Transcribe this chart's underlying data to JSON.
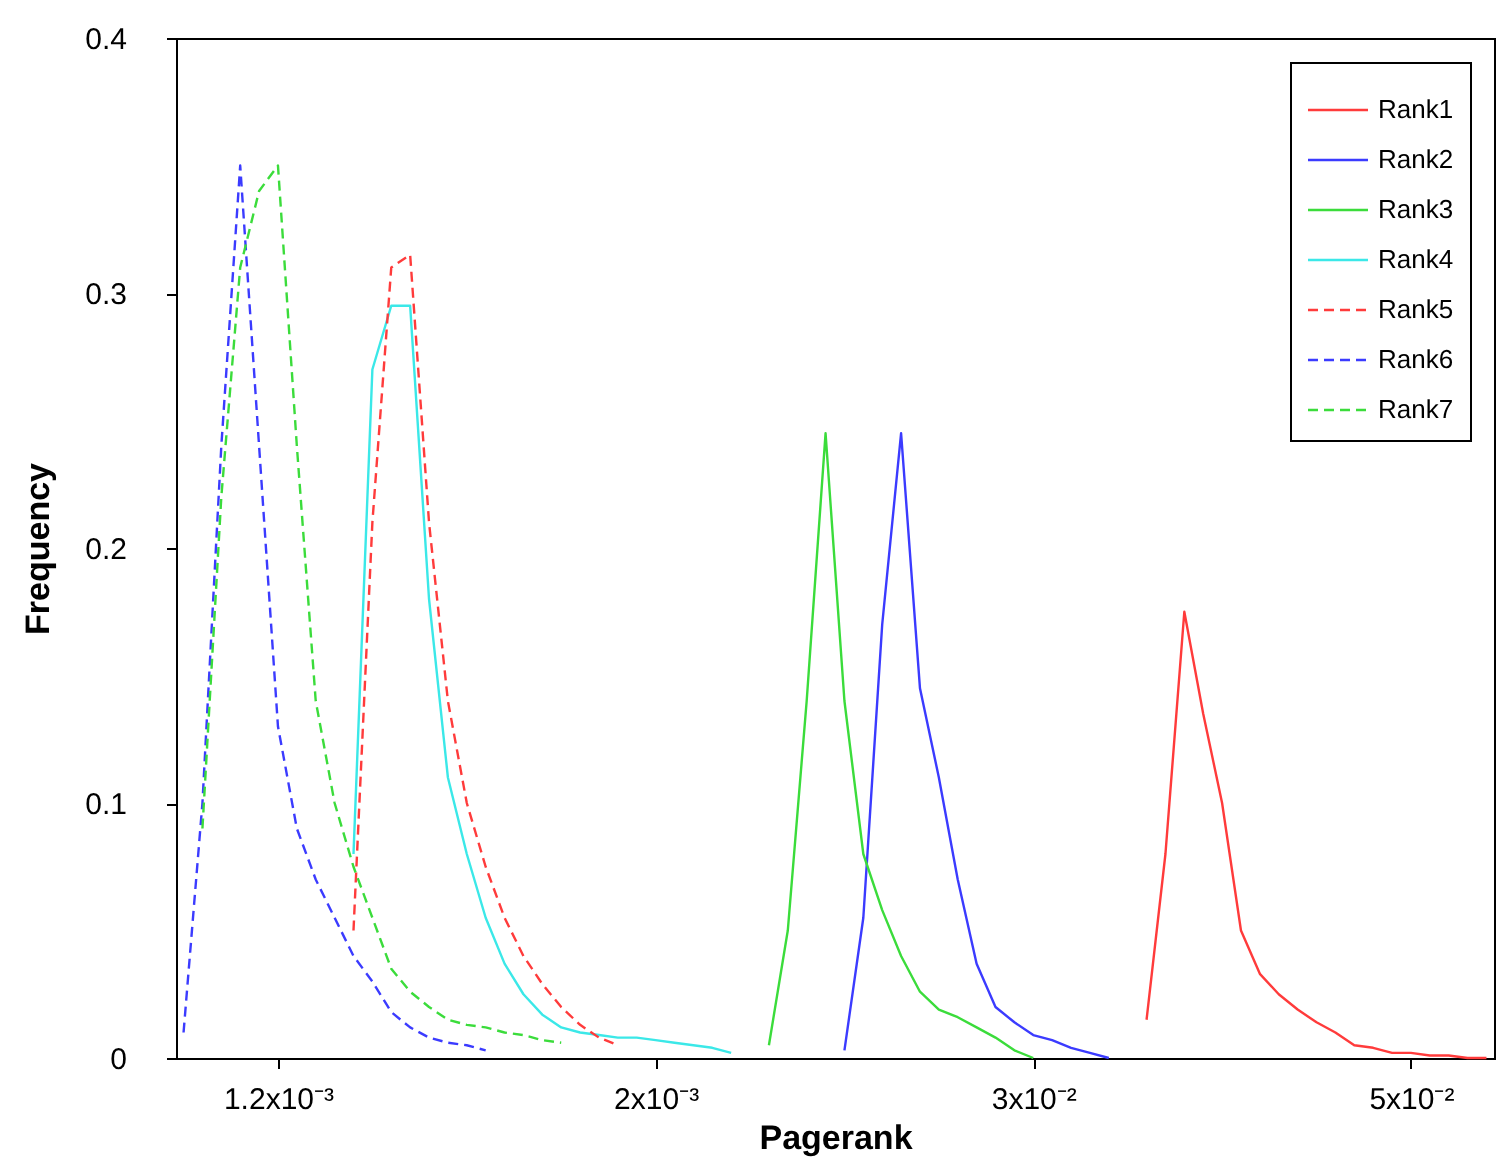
{
  "chart_data": {
    "type": "line",
    "xlabel": "Pagerank",
    "ylabel": "Frequency",
    "categories": [
      null,
      null,
      null,
      null,
      null,
      "1.2x10⁻³",
      null,
      null,
      null,
      null,
      null,
      null,
      null,
      null,
      null,
      null,
      null,
      null,
      null,
      null,
      null,
      null,
      null,
      null,
      null,
      "2x10⁻³",
      null,
      null,
      null,
      null,
      null,
      null,
      null,
      null,
      null,
      null,
      null,
      null,
      null,
      null,
      null,
      null,
      null,
      null,
      null,
      "3x10⁻²",
      null,
      null,
      null,
      null,
      null,
      null,
      null,
      null,
      null,
      null,
      null,
      null,
      null,
      null,
      null,
      null,
      null,
      null,
      null,
      "5x10⁻²",
      null,
      null,
      null,
      null
    ],
    "ylim": [
      0,
      0.4
    ],
    "yticks": [
      0,
      0.1,
      0.2,
      0.3,
      0.4
    ],
    "legend": "top right",
    "series": [
      {
        "name": "Rank1",
        "color": "#ff3b3b",
        "line_style": "solid",
        "values": [
          null,
          null,
          null,
          null,
          null,
          null,
          null,
          null,
          null,
          null,
          null,
          null,
          null,
          null,
          null,
          null,
          null,
          null,
          null,
          null,
          null,
          null,
          null,
          null,
          null,
          null,
          null,
          null,
          null,
          null,
          null,
          null,
          null,
          null,
          null,
          null,
          null,
          null,
          null,
          null,
          null,
          null,
          null,
          null,
          null,
          null,
          null,
          null,
          null,
          null,
          null,
          0.015,
          0.08,
          0.175,
          0.135,
          0.1,
          0.05,
          0.033,
          0.025,
          0.019,
          0.014,
          0.01,
          0.005,
          0.004,
          0.002,
          0.002,
          0.001,
          0.001,
          0,
          0
        ]
      },
      {
        "name": "Rank2",
        "color": "#3b3bff",
        "line_style": "solid",
        "values": [
          null,
          null,
          null,
          null,
          null,
          null,
          null,
          null,
          null,
          null,
          null,
          null,
          null,
          null,
          null,
          null,
          null,
          null,
          null,
          null,
          null,
          null,
          null,
          null,
          null,
          null,
          null,
          null,
          null,
          null,
          null,
          null,
          null,
          null,
          null,
          0.003,
          0.055,
          0.17,
          0.245,
          0.145,
          0.11,
          0.07,
          0.037,
          0.02,
          0.014,
          0.009,
          0.007,
          0.004,
          0.002,
          0,
          null,
          null,
          null,
          null,
          null,
          null,
          null,
          null,
          null,
          null,
          null,
          null,
          null,
          null,
          null,
          null,
          null,
          null,
          null,
          null
        ]
      },
      {
        "name": "Rank3",
        "color": "#3bdc3b",
        "line_style": "solid",
        "values": [
          null,
          null,
          null,
          null,
          null,
          null,
          null,
          null,
          null,
          null,
          null,
          null,
          null,
          null,
          null,
          null,
          null,
          null,
          null,
          null,
          null,
          null,
          null,
          null,
          null,
          null,
          null,
          null,
          null,
          null,
          null,
          0.005,
          0.05,
          0.14,
          0.245,
          0.14,
          0.08,
          0.058,
          0.04,
          0.026,
          0.019,
          0.016,
          0.012,
          0.008,
          0.003,
          0,
          null,
          null,
          null,
          null,
          null,
          null,
          null,
          null,
          null,
          null,
          null,
          null,
          null,
          null,
          null,
          null,
          null,
          null,
          null,
          null,
          null,
          null,
          null,
          null
        ]
      },
      {
        "name": "Rank4",
        "color": "#3be8e8",
        "line_style": "solid",
        "values": [
          null,
          null,
          null,
          null,
          null,
          null,
          null,
          null,
          null,
          0.08,
          0.27,
          0.295,
          0.295,
          0.18,
          0.11,
          0.08,
          0.055,
          0.037,
          0.025,
          0.017,
          0.012,
          0.01,
          0.009,
          0.008,
          0.008,
          0.007,
          0.006,
          0.005,
          0.004,
          0.002,
          null,
          null,
          null,
          null,
          null,
          null,
          null,
          null,
          null,
          null,
          null,
          null,
          null,
          null,
          null,
          null,
          null,
          null,
          null,
          null,
          null,
          null,
          null,
          null,
          null,
          null,
          null,
          null,
          null,
          null,
          null,
          null,
          null,
          null,
          null,
          null,
          null,
          null,
          null,
          null
        ]
      },
      {
        "name": "Rank5",
        "color": "#ff3b3b",
        "line_style": "dashed",
        "values": [
          null,
          null,
          null,
          null,
          null,
          null,
          null,
          null,
          null,
          0.05,
          0.21,
          0.31,
          0.315,
          0.21,
          0.14,
          0.1,
          0.075,
          0.055,
          0.04,
          0.029,
          0.02,
          0.013,
          0.008,
          0.005,
          null,
          null,
          null,
          null,
          null,
          null,
          null,
          null,
          null,
          null,
          null,
          null,
          null,
          null,
          null,
          null,
          null,
          null,
          null,
          null,
          null,
          null,
          null,
          null,
          null,
          null,
          null,
          null,
          null,
          null,
          null,
          null,
          null,
          null,
          null,
          null,
          null,
          null,
          null,
          null,
          null,
          null,
          null,
          null,
          null,
          null
        ]
      },
      {
        "name": "Rank6",
        "color": "#3b3bff",
        "line_style": "dashed",
        "values": [
          0.01,
          0.1,
          0.24,
          0.35,
          0.24,
          0.13,
          0.09,
          0.07,
          0.055,
          0.04,
          0.03,
          0.018,
          0.012,
          0.008,
          0.006,
          0.005,
          0.003,
          null,
          null,
          null,
          null,
          null,
          null,
          null,
          null,
          null,
          null,
          null,
          null,
          null,
          null,
          null,
          null,
          null,
          null,
          null,
          null,
          null,
          null,
          null,
          null,
          null,
          null,
          null,
          null,
          null,
          null,
          null,
          null,
          null,
          null,
          null,
          null,
          null,
          null,
          null,
          null,
          null,
          null,
          null,
          null,
          null,
          null,
          null,
          null,
          null,
          null,
          null,
          null,
          null
        ]
      },
      {
        "name": "Rank7",
        "color": "#3bdc3b",
        "line_style": "dashed",
        "values": [
          null,
          0.09,
          0.22,
          0.31,
          0.34,
          0.35,
          0.24,
          0.14,
          0.1,
          0.075,
          0.055,
          0.035,
          0.026,
          0.02,
          0.015,
          0.013,
          0.012,
          0.01,
          0.009,
          0.007,
          0.006,
          null,
          null,
          null,
          null,
          null,
          null,
          null,
          null,
          null,
          null,
          null,
          null,
          null,
          null,
          null,
          null,
          null,
          null,
          null,
          null,
          null,
          null,
          null,
          null,
          null,
          null,
          null,
          null,
          null,
          null,
          null,
          null,
          null,
          null,
          null,
          null,
          null,
          null,
          null,
          null,
          null,
          null,
          null,
          null,
          null,
          null,
          null,
          null,
          null
        ]
      }
    ]
  }
}
